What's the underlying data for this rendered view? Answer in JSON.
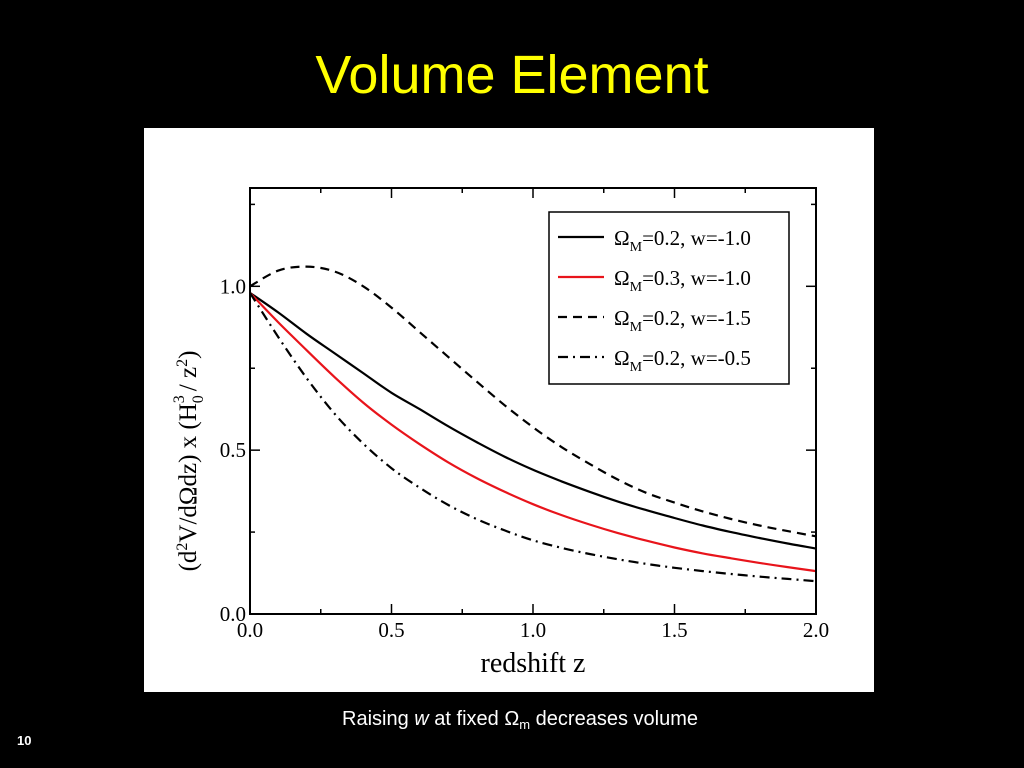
{
  "slide": {
    "title": "Volume Element",
    "caption": {
      "prefix": "Raising ",
      "variable": "w",
      "middle": " at fixed Ω",
      "subscript": "m",
      "suffix": " decreases volume"
    },
    "page_number": "10"
  },
  "colors": {
    "background": "#000000",
    "title": "#ffff00",
    "caption": "#ffffff",
    "panel": "#ffffff",
    "axis": "#000000"
  },
  "chart_data": {
    "type": "line",
    "xlabel": "redshift z",
    "ylabel": {
      "p1": "(d",
      "p1_sup": "2",
      "p2": "V/dΩdz) x (H",
      "p2_sub": "0",
      "p2_sup": "3",
      "p3": "/ z",
      "p3_sup": "2",
      "p4": ")"
    },
    "xlim": [
      0,
      2.0
    ],
    "ylim": [
      0,
      1.3
    ],
    "x_ticks": [
      "0.0",
      "0.5",
      "1.0",
      "1.5",
      "2.0"
    ],
    "y_ticks": [
      "0.0",
      "0.5",
      "1.0"
    ],
    "grid": false,
    "legend_position": "top-right",
    "series": [
      {
        "label_symbol": "Ω",
        "label_sub": "M",
        "label_rest": "=0.2, w=-1.0",
        "color": "#000000",
        "dash": "solid",
        "x": [
          0,
          0.1,
          0.2,
          0.3,
          0.4,
          0.5,
          0.6,
          0.7,
          0.8,
          0.9,
          1.0,
          1.1,
          1.2,
          1.3,
          1.4,
          1.5,
          1.6,
          1.7,
          1.8,
          1.9,
          2.0
        ],
        "y": [
          0.98,
          0.92,
          0.855,
          0.795,
          0.735,
          0.675,
          0.625,
          0.573,
          0.525,
          0.48,
          0.44,
          0.405,
          0.373,
          0.343,
          0.317,
          0.293,
          0.27,
          0.25,
          0.232,
          0.215,
          0.2
        ]
      },
      {
        "label_symbol": "Ω",
        "label_sub": "M",
        "label_rest": "=0.3, w=-1.0",
        "color": "#e8141b",
        "dash": "solid",
        "x": [
          0,
          0.1,
          0.2,
          0.3,
          0.4,
          0.5,
          0.6,
          0.7,
          0.8,
          0.9,
          1.0,
          1.1,
          1.2,
          1.3,
          1.4,
          1.5,
          1.6,
          1.7,
          1.8,
          1.9,
          2.0
        ],
        "y": [
          0.98,
          0.89,
          0.805,
          0.722,
          0.645,
          0.578,
          0.518,
          0.463,
          0.415,
          0.373,
          0.335,
          0.302,
          0.273,
          0.247,
          0.224,
          0.203,
          0.185,
          0.17,
          0.156,
          0.143,
          0.131
        ]
      },
      {
        "label_symbol": "Ω",
        "label_sub": "M",
        "label_rest": "=0.2, w=-1.5",
        "color": "#000000",
        "dash": "dashed",
        "x": [
          0,
          0.1,
          0.2,
          0.3,
          0.4,
          0.5,
          0.6,
          0.7,
          0.8,
          0.9,
          1.0,
          1.1,
          1.2,
          1.3,
          1.4,
          1.5,
          1.6,
          1.7,
          1.8,
          1.9,
          2.0
        ],
        "y": [
          1.0,
          1.048,
          1.06,
          1.045,
          1.0,
          0.935,
          0.86,
          0.785,
          0.71,
          0.637,
          0.57,
          0.51,
          0.458,
          0.41,
          0.37,
          0.34,
          0.313,
          0.29,
          0.27,
          0.253,
          0.237
        ]
      },
      {
        "label_symbol": "Ω",
        "label_sub": "M",
        "label_rest": "=0.2, w=-0.5",
        "color": "#000000",
        "dash": "dashdot",
        "x": [
          0,
          0.1,
          0.2,
          0.3,
          0.4,
          0.5,
          0.6,
          0.7,
          0.8,
          0.9,
          1.0,
          1.1,
          1.2,
          1.3,
          1.4,
          1.5,
          1.6,
          1.7,
          1.8,
          1.9,
          2.0
        ],
        "y": [
          0.98,
          0.845,
          0.72,
          0.61,
          0.52,
          0.445,
          0.385,
          0.333,
          0.29,
          0.255,
          0.225,
          0.202,
          0.183,
          0.167,
          0.153,
          0.141,
          0.131,
          0.122,
          0.114,
          0.107,
          0.1
        ]
      }
    ]
  }
}
